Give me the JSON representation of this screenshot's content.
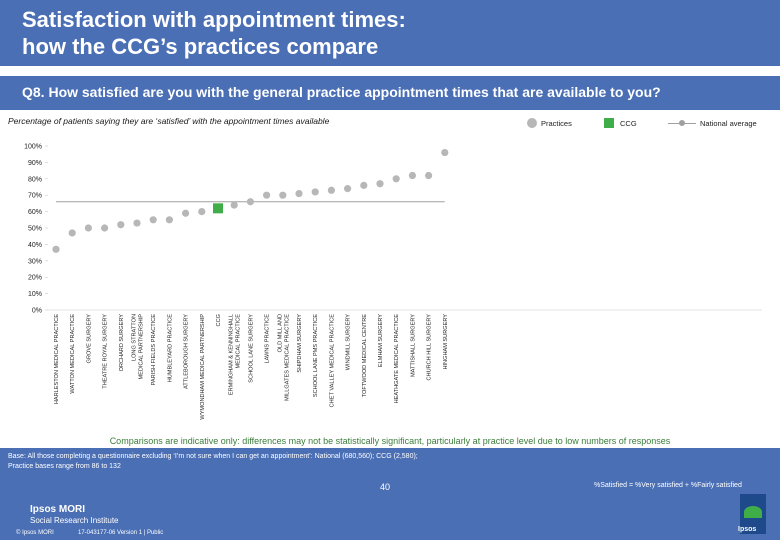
{
  "header": {
    "title_line1": "Satisfaction with appointment times:",
    "title_line2": "how the CCG’s practices compare"
  },
  "question": "Q8. How satisfied are you with the general practice appointment times that are available to you?",
  "subtitle": "Percentage of patients saying they are ‘satisfied’ with the appointment times available",
  "legend": {
    "practices": "Practices",
    "ccg": "CCG",
    "national": "National average"
  },
  "colors": {
    "practice": "#b7b7b7",
    "ccg": "#3fae49",
    "national": "#a0a0a0",
    "header": "#4a6fb5"
  },
  "chart_data": {
    "type": "scatter",
    "title": "Percentage of patients saying they are ‘satisfied’ with the appointment times available",
    "ylabel": "",
    "xlabel": "",
    "ylim": [
      0,
      100
    ],
    "yticks": [
      "0%",
      "10%",
      "20%",
      "30%",
      "40%",
      "50%",
      "60%",
      "70%",
      "80%",
      "90%",
      "100%"
    ],
    "categories": [
      "HARLESTON MEDICAL PRACTICE",
      "WATTON MEDICAL PRACTICE",
      "GROVE SURGERY",
      "THEATRE ROYAL SURGERY",
      "ORCHARD SURGERY",
      "LONG STRATTON MEDICAL PARTNERSHIP",
      "PARISH FIELDS PRACTICE",
      "HUMBLEYARD PRACTICE",
      "ATTLEBOROUGH SURGERY",
      "WYMONDHAM MEDICAL PARTNERSHIP",
      "CCG",
      "ERMINGHAM & KENNINGHALL MEDICAL PRACTICE",
      "SCHOOL LANE SURGERY",
      "LAWNS PRACTICE",
      "OLD MILL AND MILLGATES MEDICAL PRACTICE",
      "SHIPDHAM SURGERY",
      "SCHOOL LANE PMS PRACTICE",
      "CHET VALLEY MEDICAL PRACTICE",
      "WINDMILL SURGERY",
      "TOFTWOOD MEDICAL CENTRE",
      "ELMHAM SURGERY",
      "HEATHGATE MEDICAL PRACTICE",
      "MATTISHALL SURGERY",
      "CHURCH HILL SURGERY",
      "HINGHAM SURGERY"
    ],
    "series": [
      {
        "name": "Practices",
        "values": [
          37,
          47,
          50,
          50,
          52,
          53,
          55,
          55,
          59,
          60,
          null,
          64,
          66,
          70,
          70,
          71,
          72,
          73,
          74,
          76,
          77,
          80,
          82,
          82,
          96
        ]
      },
      {
        "name": "CCG",
        "values": [
          null,
          null,
          null,
          null,
          null,
          null,
          null,
          null,
          null,
          null,
          62,
          null,
          null,
          null,
          null,
          null,
          null,
          null,
          null,
          null,
          null,
          null,
          null,
          null,
          null
        ]
      },
      {
        "name": "National average",
        "values": [
          66,
          66,
          66,
          66,
          66,
          66,
          66,
          66,
          66,
          66,
          66,
          66,
          66,
          66,
          66,
          66,
          66,
          66,
          66,
          66,
          66,
          66,
          66,
          66,
          66
        ]
      }
    ]
  },
  "note": "Comparisons are indicative only: differences may not be statistically significant, particularly at practice level due to low numbers of responses",
  "footer": {
    "base_line1": "Base: All those completing a questionnaire excluding ‘I’m not sure when I can get an appointment’: National (680,560); CCG (2,580);",
    "base_line2": "Practice bases range from 86 to 132",
    "satisfied_definition": "%Satisfied = %Very satisfied + %Fairly satisfied",
    "page_number": "40",
    "logo_name": "Ipsos MORI",
    "logo_sub": "Social Research Institute",
    "copyright": "© Ipsos MORI",
    "job_number": "17-043177-06 Version 1 | Public",
    "icon_text": "Ipsos"
  }
}
